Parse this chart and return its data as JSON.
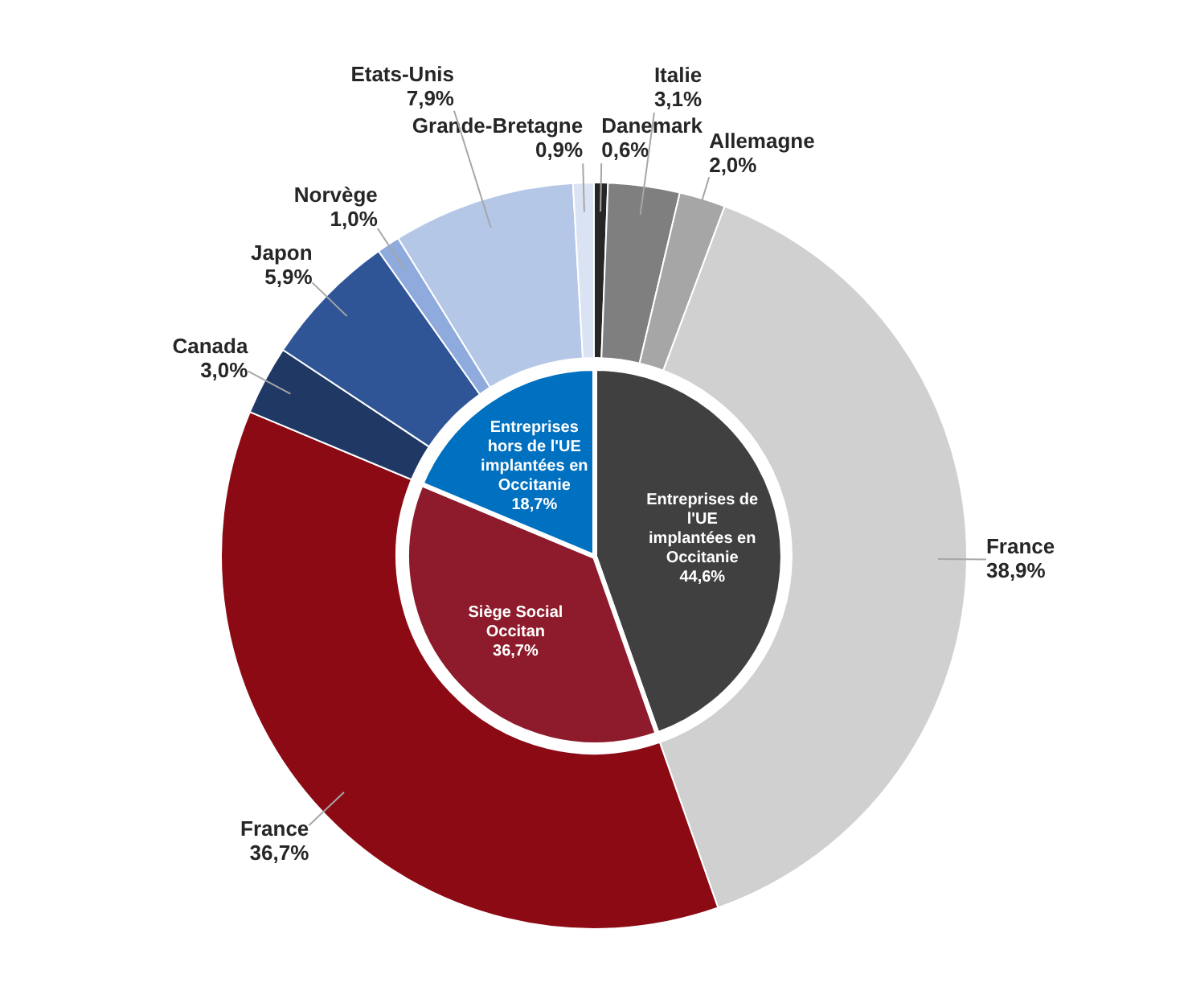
{
  "chart_data": [
    {
      "type": "donut",
      "categories": [
        "Danemark",
        "Italie",
        "Allemagne",
        "France",
        "France",
        "Canada",
        "Japon",
        "Norvège",
        "Etats-Unis",
        "Grande-Bretagne"
      ],
      "values": [
        0.6,
        3.1,
        2.0,
        38.9,
        36.7,
        3.0,
        5.9,
        1.0,
        7.9,
        0.9
      ],
      "colors": [
        "#262626",
        "#7f7f7f",
        "#a6a6a6",
        "#d0d0d0",
        "#8b0a14",
        "#1f3864",
        "#2f5597",
        "#8faadc",
        "#b4c7e7",
        "#dae3f3"
      ],
      "value_labels": [
        "0,6%",
        "3,1%",
        "2,0%",
        "38,9%",
        "36,7%",
        "3,0%",
        "5,9%",
        "1,0%",
        "7,9%",
        "0,9%"
      ]
    },
    {
      "type": "pie",
      "categories": [
        "Entreprises de l'UE implantées en Occitanie",
        "Siège Social Occitan",
        "Entreprises hors de l'UE implantées en Occitanie"
      ],
      "values": [
        44.6,
        36.7,
        18.7
      ],
      "colors": [
        "#404040",
        "#8e1b2b",
        "#0070c0"
      ],
      "value_labels": [
        "44,6%",
        "36,7%",
        "18,7%"
      ]
    }
  ]
}
